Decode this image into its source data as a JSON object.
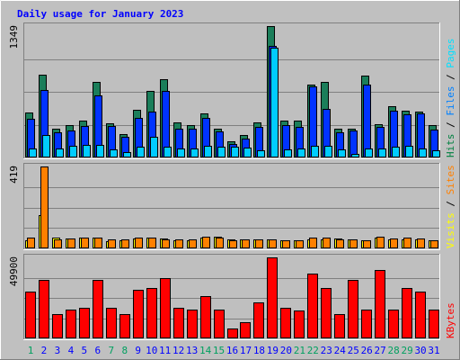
{
  "chart_data": {
    "type": "bar",
    "title": "Daily usage for January 2023",
    "days": [
      "1",
      "2",
      "3",
      "4",
      "5",
      "6",
      "7",
      "8",
      "9",
      "10",
      "11",
      "12",
      "13",
      "14",
      "15",
      "16",
      "17",
      "18",
      "19",
      "20",
      "21",
      "22",
      "23",
      "24",
      "25",
      "26",
      "27",
      "28",
      "29",
      "30",
      "31"
    ],
    "weekend_days": [
      "1",
      "7",
      "8",
      "14",
      "15",
      "21",
      "22",
      "28",
      "29"
    ],
    "panels": [
      {
        "name": "top",
        "max_label": "1349",
        "ymax": 1349,
        "grid_lines": [
          0.25,
          0.5,
          0.75
        ],
        "legend": [
          {
            "label": "Hits",
            "color": "#008040"
          },
          {
            "label": " / ",
            "color": "#000000"
          },
          {
            "label": "Files",
            "color": "#0080ff"
          },
          {
            "label": " / ",
            "color": "#000000"
          },
          {
            "label": "Pages",
            "color": "#00e0ff"
          }
        ],
        "series": [
          {
            "name": "Hits",
            "color": "#1b7e5a",
            "border": "#000000",
            "offset": 0,
            "values": [
              460,
              850,
              300,
              330,
              380,
              780,
              350,
              240,
              490,
              680,
              800,
              360,
              330,
              450,
              300,
              170,
              230,
              360,
              1349,
              380,
              380,
              750,
              780,
              300,
              300,
              840,
              340,
              530,
              480,
              470,
              330
            ]
          },
          {
            "name": "Files",
            "color": "#0033ff",
            "border": "#000000",
            "offset": 4,
            "values": [
              400,
              690,
              260,
              280,
              320,
              640,
              320,
              210,
              410,
              470,
              680,
              300,
              300,
              410,
              270,
              140,
              190,
              310,
              1150,
              330,
              310,
              730,
              500,
              260,
              280,
              750,
              310,
              480,
              440,
              450,
              290
            ]
          },
          {
            "name": "Pages",
            "color": "#00ccff",
            "border": "#000000",
            "offset": 8,
            "values": [
              90,
              230,
              90,
              120,
              130,
              130,
              80,
              60,
              110,
              210,
              110,
              90,
              90,
              120,
              110,
              110,
              100,
              70,
              1130,
              80,
              90,
              120,
              120,
              80,
              40,
              90,
              90,
              110,
              120,
              90,
              70
            ]
          }
        ]
      },
      {
        "name": "middle",
        "max_label": "419",
        "ymax": 419,
        "grid_lines": [
          0.25,
          0.5,
          0.75
        ],
        "legend": [
          {
            "label": "Visits",
            "color": "#ffff00"
          },
          {
            "label": " / ",
            "color": "#000000"
          },
          {
            "label": "Sites",
            "color": "#ff8000"
          }
        ],
        "series": [
          {
            "name": "Visits",
            "color": "#ffff00",
            "border": "#000000",
            "offset": 0,
            "values": [
              40,
              170,
              55,
              50,
              55,
              55,
              35,
              40,
              50,
              55,
              50,
              40,
              40,
              55,
              60,
              45,
              45,
              45,
              45,
              40,
              40,
              45,
              45,
              50,
              45,
              40,
              55,
              45,
              45,
              45,
              40
            ]
          },
          {
            "name": "Sites",
            "color": "#ff8000",
            "border": "#000000",
            "offset": 4,
            "values": [
              55,
              419,
              45,
              50,
              55,
              55,
              45,
              45,
              55,
              55,
              45,
              45,
              45,
              60,
              55,
              40,
              45,
              45,
              45,
              40,
              40,
              55,
              55,
              45,
              45,
              40,
              60,
              50,
              55,
              50,
              40
            ]
          }
        ]
      },
      {
        "name": "bottom",
        "max_label": "49900",
        "ymax": 49900,
        "grid_lines": [
          0.25,
          0.5,
          0.75
        ],
        "legend": [
          {
            "label": "KBytes",
            "color": "#ff0000"
          }
        ],
        "series": [
          {
            "name": "KBytes",
            "color": "#ff0000",
            "border": "#000000",
            "offset": 0,
            "values": [
              29000,
              36000,
              15000,
              18000,
              19000,
              36000,
              19000,
              15000,
              30000,
              31000,
              37000,
              19000,
              18000,
              26000,
              18000,
              6000,
              10000,
              22000,
              49900,
              19000,
              17000,
              40000,
              31000,
              15000,
              36000,
              18000,
              42000,
              18000,
              31000,
              29000,
              18000
            ]
          }
        ]
      }
    ]
  },
  "colors": {
    "background": "#c0c0c0",
    "plot_background": "#bfbfbf",
    "title": "#0000ff",
    "day_weekday": "#0000ff",
    "day_weekend": "#00a060"
  }
}
